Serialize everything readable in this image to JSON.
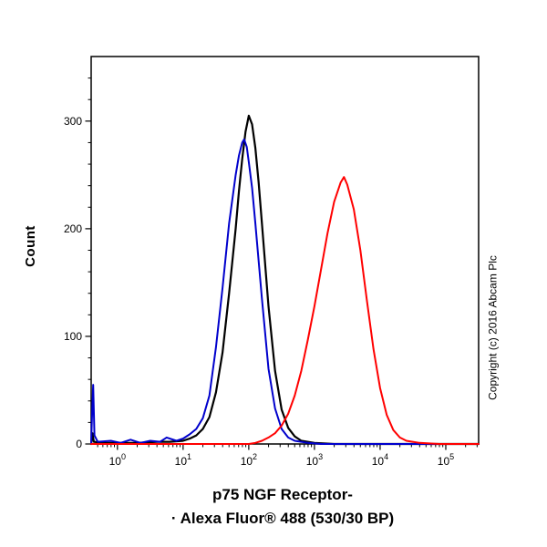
{
  "figure": {
    "ylabel": "Count",
    "xlabel_line1": "p75 NGF Receptor-",
    "xlabel_line2": "· Alexa Fluor® 488 (530/30 BP)",
    "copyright": "Copyright (c) 2016 Abcam Plc",
    "frame_color": "#000000",
    "background": "#ffffff"
  },
  "chart_data": {
    "type": "line",
    "title": "",
    "xlabel": "p75 NGF Receptor- · Alexa Fluor® 488 (530/30 BP)",
    "ylabel": "Count",
    "x_scale": "log10",
    "xlim_log": [
      -0.4,
      5.5
    ],
    "ylim": [
      0,
      360
    ],
    "x_ticks_exponents": [
      0,
      1,
      2,
      3,
      4,
      5
    ],
    "y_ticks": [
      0,
      100,
      200,
      300
    ],
    "grid": false,
    "legend": "none",
    "series": [
      {
        "name": "black-curve",
        "color": "#000000",
        "stroke_width": 2.2,
        "points": [
          [
            -0.4,
            0
          ],
          [
            -0.38,
            10
          ],
          [
            -0.36,
            2
          ],
          [
            -0.2,
            1
          ],
          [
            0.0,
            1
          ],
          [
            0.3,
            1
          ],
          [
            0.6,
            2
          ],
          [
            0.8,
            2
          ],
          [
            1.0,
            3
          ],
          [
            1.1,
            5
          ],
          [
            1.2,
            8
          ],
          [
            1.3,
            14
          ],
          [
            1.4,
            25
          ],
          [
            1.5,
            48
          ],
          [
            1.6,
            85
          ],
          [
            1.7,
            140
          ],
          [
            1.8,
            200
          ],
          [
            1.85,
            235
          ],
          [
            1.9,
            265
          ],
          [
            1.95,
            290
          ],
          [
            2.0,
            305
          ],
          [
            2.05,
            297
          ],
          [
            2.1,
            275
          ],
          [
            2.15,
            243
          ],
          [
            2.2,
            205
          ],
          [
            2.3,
            128
          ],
          [
            2.4,
            68
          ],
          [
            2.5,
            32
          ],
          [
            2.6,
            15
          ],
          [
            2.7,
            7
          ],
          [
            2.8,
            3
          ],
          [
            3.0,
            1
          ],
          [
            3.3,
            0
          ],
          [
            5.5,
            0
          ]
        ]
      },
      {
        "name": "blue-curve",
        "color": "#0000cc",
        "stroke_width": 2,
        "points": [
          [
            -0.4,
            0
          ],
          [
            -0.385,
            30
          ],
          [
            -0.37,
            55
          ],
          [
            -0.35,
            8
          ],
          [
            -0.3,
            2
          ],
          [
            -0.1,
            3
          ],
          [
            0.05,
            1
          ],
          [
            0.2,
            4
          ],
          [
            0.35,
            1
          ],
          [
            0.5,
            3
          ],
          [
            0.65,
            2
          ],
          [
            0.75,
            6
          ],
          [
            0.9,
            3
          ],
          [
            1.0,
            5
          ],
          [
            1.1,
            9
          ],
          [
            1.2,
            14
          ],
          [
            1.3,
            24
          ],
          [
            1.4,
            45
          ],
          [
            1.5,
            90
          ],
          [
            1.6,
            145
          ],
          [
            1.7,
            205
          ],
          [
            1.8,
            250
          ],
          [
            1.85,
            268
          ],
          [
            1.9,
            280
          ],
          [
            1.93,
            283
          ],
          [
            1.97,
            276
          ],
          [
            2.0,
            262
          ],
          [
            2.05,
            238
          ],
          [
            2.1,
            205
          ],
          [
            2.2,
            135
          ],
          [
            2.3,
            70
          ],
          [
            2.4,
            33
          ],
          [
            2.5,
            14
          ],
          [
            2.6,
            6
          ],
          [
            2.7,
            3
          ],
          [
            2.9,
            1
          ],
          [
            3.1,
            0
          ],
          [
            5.5,
            0
          ]
        ]
      },
      {
        "name": "red-curve",
        "color": "#ff0000",
        "stroke_width": 2,
        "points": [
          [
            -0.4,
            0
          ],
          [
            2.0,
            0
          ],
          [
            2.1,
            1
          ],
          [
            2.2,
            3
          ],
          [
            2.3,
            6
          ],
          [
            2.4,
            10
          ],
          [
            2.5,
            17
          ],
          [
            2.6,
            28
          ],
          [
            2.7,
            45
          ],
          [
            2.8,
            68
          ],
          [
            2.9,
            97
          ],
          [
            3.0,
            128
          ],
          [
            3.1,
            162
          ],
          [
            3.2,
            196
          ],
          [
            3.3,
            225
          ],
          [
            3.4,
            243
          ],
          [
            3.45,
            248
          ],
          [
            3.5,
            241
          ],
          [
            3.6,
            218
          ],
          [
            3.7,
            180
          ],
          [
            3.8,
            133
          ],
          [
            3.9,
            88
          ],
          [
            4.0,
            52
          ],
          [
            4.1,
            27
          ],
          [
            4.2,
            13
          ],
          [
            4.3,
            6
          ],
          [
            4.4,
            3
          ],
          [
            4.6,
            1
          ],
          [
            4.9,
            0
          ],
          [
            5.5,
            0
          ]
        ]
      }
    ]
  }
}
